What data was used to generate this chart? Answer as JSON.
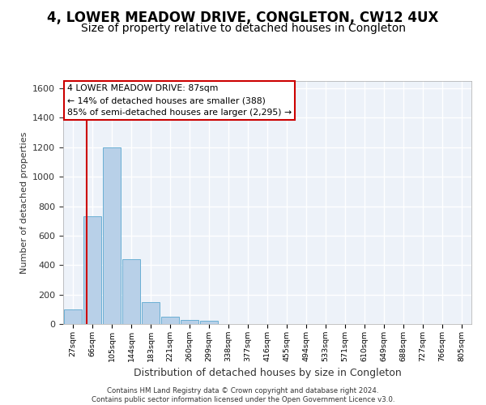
{
  "title": "4, LOWER MEADOW DRIVE, CONGLETON, CW12 4UX",
  "subtitle": "Size of property relative to detached houses in Congleton",
  "xlabel": "Distribution of detached houses by size in Congleton",
  "ylabel": "Number of detached properties",
  "bar_color": "#b8d0e8",
  "bar_edge_color": "#6aafd4",
  "bin_labels": [
    "27sqm",
    "66sqm",
    "105sqm",
    "144sqm",
    "183sqm",
    "221sqm",
    "260sqm",
    "299sqm",
    "338sqm",
    "377sqm",
    "416sqm",
    "455sqm",
    "494sqm",
    "533sqm",
    "571sqm",
    "610sqm",
    "649sqm",
    "688sqm",
    "727sqm",
    "766sqm",
    "805sqm"
  ],
  "bar_heights": [
    100,
    730,
    1200,
    440,
    150,
    50,
    30,
    20,
    0,
    0,
    0,
    0,
    0,
    0,
    0,
    0,
    0,
    0,
    0,
    0,
    0
  ],
  "property_line_color": "#cc0000",
  "annotation_line1": "4 LOWER MEADOW DRIVE: 87sqm",
  "annotation_line2": "← 14% of detached houses are smaller (388)",
  "annotation_line3": "85% of semi-detached houses are larger (2,295) →",
  "annotation_box_color": "#ffffff",
  "annotation_box_edge_color": "#cc0000",
  "ylim": [
    0,
    1650
  ],
  "yticks": [
    0,
    200,
    400,
    600,
    800,
    1000,
    1200,
    1400,
    1600
  ],
  "footnote_line1": "Contains HM Land Registry data © Crown copyright and database right 2024.",
  "footnote_line2": "Contains public sector information licensed under the Open Government Licence v3.0.",
  "background_color": "#edf2f9",
  "grid_color": "#ffffff",
  "title_fontsize": 12,
  "subtitle_fontsize": 10
}
